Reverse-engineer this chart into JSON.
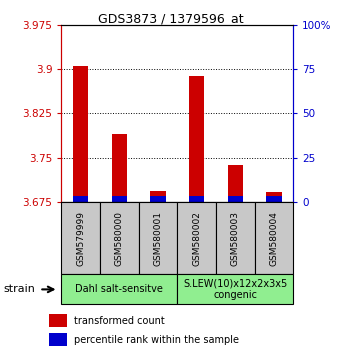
{
  "title": "GDS3873 / 1379596_at",
  "samples": [
    "GSM579999",
    "GSM580000",
    "GSM580001",
    "GSM580002",
    "GSM580003",
    "GSM580004"
  ],
  "red_values": [
    3.905,
    3.79,
    3.693,
    3.888,
    3.737,
    3.692
  ],
  "ymin": 3.675,
  "ymax": 3.975,
  "yticks": [
    3.675,
    3.75,
    3.825,
    3.9,
    3.975
  ],
  "ytick_labels": [
    "3.675",
    "3.75",
    "3.825",
    "3.9",
    "3.975"
  ],
  "y2ticks": [
    0,
    25,
    50,
    75,
    100
  ],
  "y2labels": [
    "0",
    "25",
    "50",
    "75",
    "100%"
  ],
  "groups": [
    {
      "label": "Dahl salt-sensitve",
      "start": 0,
      "end": 3,
      "color": "#90EE90"
    },
    {
      "label": "S.LEW(10)x12x2x3x5\ncongenic",
      "start": 3,
      "end": 6,
      "color": "#90EE90"
    }
  ],
  "red_color": "#CC0000",
  "blue_color": "#0000CC",
  "bar_width": 0.4,
  "baseline": 3.675,
  "blue_bar_height": 0.009,
  "sample_box_color": "#C8C8C8",
  "legend_red": "transformed count",
  "legend_blue": "percentile rank within the sample"
}
